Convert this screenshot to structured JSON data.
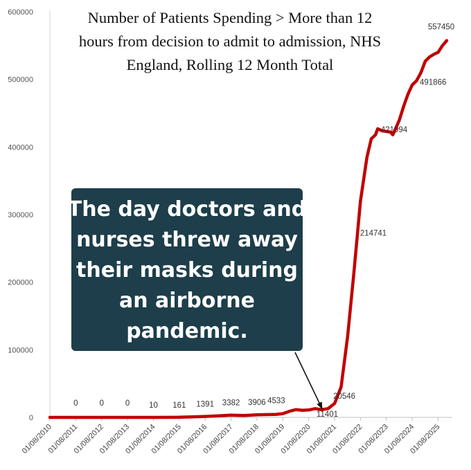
{
  "chart_data": {
    "type": "line",
    "title_lines": [
      "Number of Patients Spending > More than 12",
      "hours from decision to admit to admission, NHS",
      "England, Rolling 12 Month Total"
    ],
    "xlabel": "",
    "ylabel": "",
    "ylim": [
      0,
      600000
    ],
    "yticks": [
      0,
      100000,
      200000,
      300000,
      400000,
      500000,
      600000
    ],
    "ytick_labels": [
      "0",
      "100000",
      "200000",
      "300000",
      "400000",
      "500000",
      "600000"
    ],
    "xlim": [
      "2010-08-01",
      "2025-12-01"
    ],
    "x_tick_labels": [
      {
        "date": "2010-08-01",
        "label": "01/08/2010"
      },
      {
        "date": "2011-08-01",
        "label": "01/08/2011"
      },
      {
        "date": "2012-08-01",
        "label": "01/08/2012"
      },
      {
        "date": "2013-08-01",
        "label": "01/08/2013"
      },
      {
        "date": "2014-08-01",
        "label": "01/08/2014"
      },
      {
        "date": "2015-08-01",
        "label": "01/08/2015"
      },
      {
        "date": "2016-08-01",
        "label": "01/08/2016"
      },
      {
        "date": "2017-08-01",
        "label": "01/08/2017"
      },
      {
        "date": "2018-08-01",
        "label": "01/08/2018"
      },
      {
        "date": "2019-08-01",
        "label": "01/08/2019"
      },
      {
        "date": "2020-08-01",
        "label": "01/08/2020"
      },
      {
        "date": "2021-08-01",
        "label": "01/08/2021"
      },
      {
        "date": "2022-08-01",
        "label": "01/08/2022"
      },
      {
        "date": "2023-08-01",
        "label": "01/08/2023"
      },
      {
        "date": "2024-08-01",
        "label": "01/08/2024"
      },
      {
        "date": "2025-08-01",
        "label": "01/08/2025"
      }
    ],
    "grid": false,
    "series": [
      {
        "color": "#c00000",
        "points": [
          {
            "x": "2010-08-01",
            "y": 0
          },
          {
            "x": "2011-08-01",
            "y": 0
          },
          {
            "x": "2012-08-01",
            "y": 0
          },
          {
            "x": "2013-08-01",
            "y": 0
          },
          {
            "x": "2014-08-01",
            "y": 10
          },
          {
            "x": "2015-08-01",
            "y": 161
          },
          {
            "x": "2016-02-01",
            "y": 800
          },
          {
            "x": "2016-08-01",
            "y": 1391
          },
          {
            "x": "2017-02-01",
            "y": 2400
          },
          {
            "x": "2017-08-01",
            "y": 3382
          },
          {
            "x": "2018-02-01",
            "y": 2800
          },
          {
            "x": "2018-08-01",
            "y": 3906
          },
          {
            "x": "2019-02-01",
            "y": 4200
          },
          {
            "x": "2019-05-01",
            "y": 4533
          },
          {
            "x": "2019-08-01",
            "y": 5500
          },
          {
            "x": "2019-11-01",
            "y": 9000
          },
          {
            "x": "2020-02-01",
            "y": 11500
          },
          {
            "x": "2020-05-01",
            "y": 10500
          },
          {
            "x": "2020-08-01",
            "y": 11000
          },
          {
            "x": "2020-11-01",
            "y": 13000
          },
          {
            "x": "2021-02-01",
            "y": 11401
          },
          {
            "x": "2021-05-01",
            "y": 13000
          },
          {
            "x": "2021-08-01",
            "y": 20546
          },
          {
            "x": "2021-11-01",
            "y": 45000
          },
          {
            "x": "2022-02-01",
            "y": 120000
          },
          {
            "x": "2022-05-01",
            "y": 214741
          },
          {
            "x": "2022-08-01",
            "y": 320000
          },
          {
            "x": "2022-11-01",
            "y": 385000
          },
          {
            "x": "2023-01-01",
            "y": 412000
          },
          {
            "x": "2023-03-01",
            "y": 418000
          },
          {
            "x": "2023-04-01",
            "y": 427000
          },
          {
            "x": "2023-06-01",
            "y": 424000
          },
          {
            "x": "2023-08-01",
            "y": 423000
          },
          {
            "x": "2023-10-01",
            "y": 421994
          },
          {
            "x": "2023-11-01",
            "y": 418000
          },
          {
            "x": "2023-12-01",
            "y": 425000
          },
          {
            "x": "2024-02-01",
            "y": 440000
          },
          {
            "x": "2024-04-01",
            "y": 460000
          },
          {
            "x": "2024-06-01",
            "y": 478000
          },
          {
            "x": "2024-08-01",
            "y": 491866
          },
          {
            "x": "2024-10-01",
            "y": 498000
          },
          {
            "x": "2024-12-01",
            "y": 510000
          },
          {
            "x": "2025-02-01",
            "y": 527000
          },
          {
            "x": "2025-04-01",
            "y": 533000
          },
          {
            "x": "2025-06-01",
            "y": 537000
          },
          {
            "x": "2025-08-01",
            "y": 540000
          },
          {
            "x": "2025-10-01",
            "y": 550000
          },
          {
            "x": "2025-12-01",
            "y": 557450
          }
        ]
      }
    ],
    "data_labels": [
      {
        "x": "2011-08-01",
        "y": 0,
        "text": "0"
      },
      {
        "x": "2012-08-01",
        "y": 0,
        "text": "0"
      },
      {
        "x": "2013-08-01",
        "y": 0,
        "text": "0"
      },
      {
        "x": "2014-08-01",
        "y": 10,
        "text": "10"
      },
      {
        "x": "2015-08-01",
        "y": 161,
        "text": "161"
      },
      {
        "x": "2016-08-01",
        "y": 1391,
        "text": "1391"
      },
      {
        "x": "2017-08-01",
        "y": 3382,
        "text": "3382"
      },
      {
        "x": "2018-08-01",
        "y": 3906,
        "text": "3906"
      },
      {
        "x": "2019-05-01",
        "y": 4533,
        "text": "4533"
      },
      {
        "x": "2021-02-01",
        "y": 11401,
        "text": "11401"
      },
      {
        "x": "2021-08-01",
        "y": 20546,
        "text": "20546"
      },
      {
        "x": "2022-05-01",
        "y": 214741,
        "text": "214741"
      },
      {
        "x": "2023-10-01",
        "y": 421994,
        "text": "421994"
      },
      {
        "x": "2024-08-01",
        "y": 491866,
        "text": "491866"
      },
      {
        "x": "2025-12-01",
        "y": 557450,
        "text": "557450"
      }
    ],
    "annotation": {
      "text_lines": [
        "The day doctors and",
        "nurses threw away",
        "their masks during",
        "an airborne",
        "pandemic."
      ],
      "box_color": "#1d3e4a",
      "text_color": "#ffffff",
      "arrow_target": {
        "x": "2021-03-01",
        "y": 13000
      }
    }
  }
}
